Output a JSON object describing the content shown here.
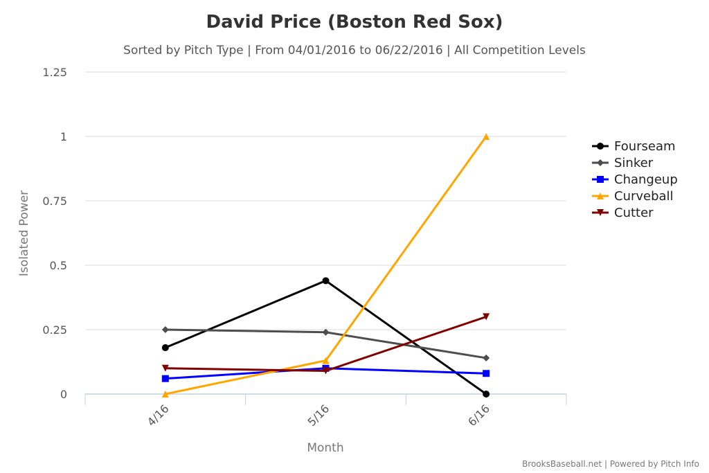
{
  "chart_data": {
    "type": "line",
    "title": "David Price (Boston Red Sox)",
    "subtitle": "Sorted by Pitch Type | From 04/01/2016 to 06/22/2016 | All Competition Levels",
    "xlabel": "Month",
    "ylabel": "Isolated Power",
    "categories": [
      "4/16",
      "5/16",
      "6/16"
    ],
    "ylim": [
      0,
      1.25
    ],
    "yticks": [
      "0",
      "0.25",
      "0.5",
      "0.75",
      "1",
      "1.25"
    ],
    "ytick_values": [
      0,
      0.25,
      0.5,
      0.75,
      1,
      1.25
    ],
    "grid": true,
    "legend_position": "right",
    "series": [
      {
        "name": "Fourseam",
        "color": "#000000",
        "marker": "circle",
        "values": [
          0.18,
          0.44,
          0.0
        ]
      },
      {
        "name": "Sinker",
        "color": "#4d4d4d",
        "marker": "diamond",
        "values": [
          0.25,
          0.24,
          0.14
        ]
      },
      {
        "name": "Changeup",
        "color": "#0000ff",
        "marker": "square",
        "values": [
          0.06,
          0.1,
          0.08
        ]
      },
      {
        "name": "Curveball",
        "color": "#ffa500",
        "marker": "triangle-up",
        "values": [
          0.0,
          0.13,
          1.0
        ]
      },
      {
        "name": "Cutter",
        "color": "#800000",
        "marker": "triangle-down",
        "values": [
          0.1,
          0.09,
          0.3
        ]
      }
    ]
  },
  "credits": "BrooksBaseball.net | Powered by Pitch Info"
}
